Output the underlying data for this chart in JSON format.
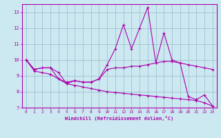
{
  "xlabel": "Windchill (Refroidissement éolien,°C)",
  "background_color": "#cce8f0",
  "line_color": "#aa00aa",
  "grid_color": "#99bbcc",
  "xlim": [
    -0.5,
    23.5
  ],
  "ylim": [
    7,
    13.5
  ],
  "xticks": [
    0,
    1,
    2,
    3,
    4,
    5,
    6,
    7,
    8,
    9,
    10,
    11,
    12,
    13,
    14,
    15,
    16,
    17,
    18,
    19,
    20,
    21,
    22,
    23
  ],
  "yticks": [
    7,
    8,
    9,
    10,
    11,
    12,
    13
  ],
  "series": [
    [
      10.0,
      9.4,
      9.5,
      9.5,
      9.2,
      8.5,
      8.7,
      8.6,
      8.6,
      8.8,
      9.7,
      10.7,
      12.2,
      10.7,
      12.0,
      13.3,
      9.8,
      11.7,
      10.0,
      9.8,
      7.7,
      7.5,
      7.8,
      7.1
    ],
    [
      10.0,
      9.4,
      9.5,
      9.5,
      8.8,
      8.6,
      8.7,
      8.6,
      8.6,
      8.8,
      9.4,
      9.5,
      9.5,
      9.6,
      9.6,
      9.7,
      9.8,
      9.9,
      9.9,
      9.8,
      9.7,
      9.6,
      9.5,
      9.4
    ],
    [
      10.0,
      9.3,
      9.2,
      9.1,
      8.8,
      8.5,
      8.4,
      8.3,
      8.2,
      8.1,
      8.0,
      7.95,
      7.9,
      7.85,
      7.8,
      7.75,
      7.7,
      7.65,
      7.6,
      7.55,
      7.5,
      7.45,
      7.3,
      7.1
    ]
  ]
}
